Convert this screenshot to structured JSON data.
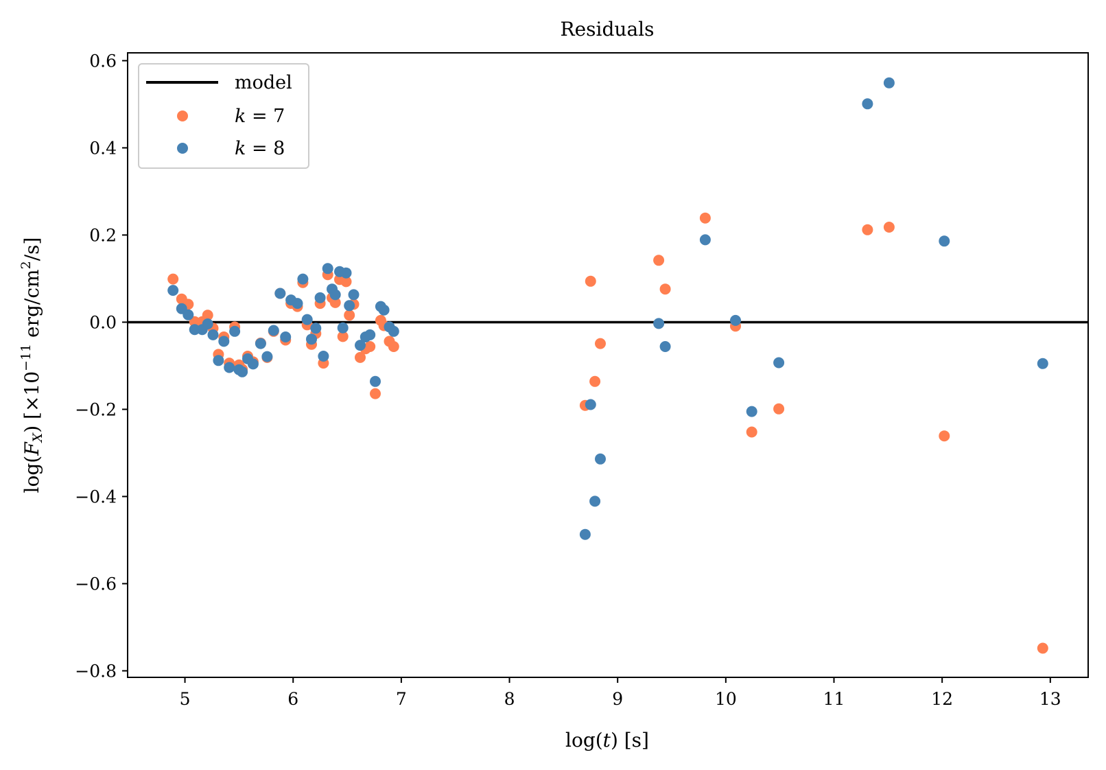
{
  "chart_data": {
    "type": "scatter",
    "title": "Residuals",
    "xlabel": "log(t) [s]",
    "xlabel_parts": {
      "pre": "log(",
      "var": "t",
      "post": ") [s]"
    },
    "ylabel": "log(F_X) [×10^−11 erg/cm²/s]",
    "ylabel_parts": {
      "pre": "log(",
      "var": "F",
      "sub": "X",
      "mid": ") [×10",
      "exp": "−11",
      "unit": " erg/cm",
      "sq": "2",
      "post": "/s]"
    },
    "xlim": [
      4.47,
      13.35
    ],
    "ylim": [
      -0.815,
      0.618
    ],
    "xticks": [
      5,
      6,
      7,
      8,
      9,
      10,
      11,
      12,
      13
    ],
    "xtick_labels": [
      "5",
      "6",
      "7",
      "8",
      "9",
      "10",
      "11",
      "12",
      "13"
    ],
    "yticks": [
      0.6,
      0.4,
      0.2,
      0.0,
      -0.2,
      -0.4,
      -0.6,
      -0.8
    ],
    "ytick_labels": [
      "0.6",
      "0.4",
      "0.2",
      "0.0",
      "−0.2",
      "−0.4",
      "−0.6",
      "−0.8"
    ],
    "grid": false,
    "legend_placement": "top-left",
    "model": {
      "name": "model",
      "y": 0.0,
      "color": "#000000"
    },
    "series": [
      {
        "name": "k = 7",
        "label_var": "k",
        "label_rest": " = 7",
        "color": "#ff7f50",
        "points": [
          [
            4.89,
            0.099
          ],
          [
            4.97,
            0.053
          ],
          [
            5.03,
            0.041
          ],
          [
            5.09,
            0.001
          ],
          [
            5.16,
            0.001
          ],
          [
            5.21,
            0.016
          ],
          [
            5.26,
            -0.014
          ],
          [
            5.31,
            -0.074
          ],
          [
            5.36,
            -0.034
          ],
          [
            5.41,
            -0.094
          ],
          [
            5.46,
            -0.011
          ],
          [
            5.5,
            -0.098
          ],
          [
            5.53,
            -0.108
          ],
          [
            5.58,
            -0.078
          ],
          [
            5.63,
            -0.091
          ],
          [
            5.7,
            -0.048
          ],
          [
            5.76,
            -0.081
          ],
          [
            5.82,
            -0.021
          ],
          [
            5.88,
            0.066
          ],
          [
            5.93,
            -0.041
          ],
          [
            5.98,
            0.043
          ],
          [
            6.04,
            0.036
          ],
          [
            6.09,
            0.091
          ],
          [
            6.13,
            -0.006
          ],
          [
            6.17,
            -0.051
          ],
          [
            6.21,
            -0.026
          ],
          [
            6.25,
            0.043
          ],
          [
            6.28,
            -0.094
          ],
          [
            6.32,
            0.109
          ],
          [
            6.36,
            0.056
          ],
          [
            6.39,
            0.045
          ],
          [
            6.43,
            0.098
          ],
          [
            6.46,
            -0.033
          ],
          [
            6.49,
            0.093
          ],
          [
            6.52,
            0.016
          ],
          [
            6.56,
            0.041
          ],
          [
            6.62,
            -0.081
          ],
          [
            6.67,
            -0.061
          ],
          [
            6.71,
            -0.056
          ],
          [
            6.76,
            -0.164
          ],
          [
            6.81,
            0.004
          ],
          [
            6.84,
            -0.008
          ],
          [
            6.89,
            -0.044
          ],
          [
            6.93,
            -0.056
          ],
          [
            8.7,
            -0.191
          ],
          [
            8.75,
            0.094
          ],
          [
            8.79,
            -0.136
          ],
          [
            8.84,
            -0.049
          ],
          [
            9.38,
            0.142
          ],
          [
            9.44,
            0.076
          ],
          [
            9.81,
            0.239
          ],
          [
            10.09,
            -0.009
          ],
          [
            10.24,
            -0.252
          ],
          [
            10.49,
            -0.199
          ],
          [
            11.31,
            0.212
          ],
          [
            11.51,
            0.218
          ],
          [
            12.02,
            -0.261
          ],
          [
            12.93,
            -0.748
          ]
        ]
      },
      {
        "name": "k = 8",
        "label_var": "k",
        "label_rest": " = 8",
        "color": "#4682b4",
        "points": [
          [
            4.89,
            0.073
          ],
          [
            4.97,
            0.031
          ],
          [
            5.03,
            0.017
          ],
          [
            5.09,
            -0.017
          ],
          [
            5.16,
            -0.017
          ],
          [
            5.21,
            -0.004
          ],
          [
            5.26,
            -0.029
          ],
          [
            5.31,
            -0.088
          ],
          [
            5.36,
            -0.044
          ],
          [
            5.41,
            -0.104
          ],
          [
            5.46,
            -0.021
          ],
          [
            5.5,
            -0.109
          ],
          [
            5.53,
            -0.114
          ],
          [
            5.58,
            -0.084
          ],
          [
            5.63,
            -0.096
          ],
          [
            5.7,
            -0.049
          ],
          [
            5.76,
            -0.079
          ],
          [
            5.82,
            -0.019
          ],
          [
            5.88,
            0.066
          ],
          [
            5.93,
            -0.034
          ],
          [
            5.98,
            0.051
          ],
          [
            6.04,
            0.043
          ],
          [
            6.09,
            0.099
          ],
          [
            6.13,
            0.006
          ],
          [
            6.17,
            -0.039
          ],
          [
            6.21,
            -0.014
          ],
          [
            6.25,
            0.056
          ],
          [
            6.28,
            -0.078
          ],
          [
            6.32,
            0.123
          ],
          [
            6.36,
            0.076
          ],
          [
            6.39,
            0.063
          ],
          [
            6.43,
            0.116
          ],
          [
            6.46,
            -0.013
          ],
          [
            6.49,
            0.113
          ],
          [
            6.52,
            0.038
          ],
          [
            6.56,
            0.063
          ],
          [
            6.62,
            -0.053
          ],
          [
            6.67,
            -0.034
          ],
          [
            6.71,
            -0.029
          ],
          [
            6.76,
            -0.136
          ],
          [
            6.81,
            0.036
          ],
          [
            6.84,
            0.028
          ],
          [
            6.89,
            -0.011
          ],
          [
            6.93,
            -0.021
          ],
          [
            8.7,
            -0.487
          ],
          [
            8.75,
            -0.189
          ],
          [
            8.79,
            -0.411
          ],
          [
            8.84,
            -0.314
          ],
          [
            9.38,
            -0.003
          ],
          [
            9.44,
            -0.056
          ],
          [
            9.81,
            0.189
          ],
          [
            10.09,
            0.004
          ],
          [
            10.24,
            -0.205
          ],
          [
            10.49,
            -0.093
          ],
          [
            11.31,
            0.501
          ],
          [
            11.51,
            0.549
          ],
          [
            12.02,
            0.186
          ],
          [
            12.93,
            -0.095
          ]
        ]
      }
    ]
  }
}
